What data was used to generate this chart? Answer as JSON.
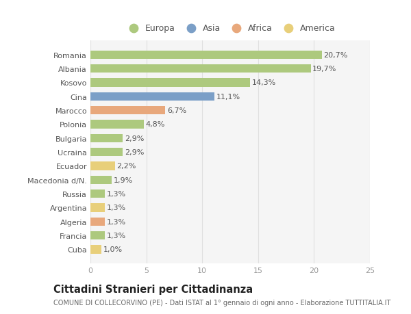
{
  "categories": [
    "Romania",
    "Albania",
    "Kosovo",
    "Cina",
    "Marocco",
    "Polonia",
    "Bulgaria",
    "Ucraina",
    "Ecuador",
    "Macedonia d/N.",
    "Russia",
    "Argentina",
    "Algeria",
    "Francia",
    "Cuba"
  ],
  "values": [
    20.7,
    19.7,
    14.3,
    11.1,
    6.7,
    4.8,
    2.9,
    2.9,
    2.2,
    1.9,
    1.3,
    1.3,
    1.3,
    1.3,
    1.0
  ],
  "labels": [
    "20,7%",
    "19,7%",
    "14,3%",
    "11,1%",
    "6,7%",
    "4,8%",
    "2,9%",
    "2,9%",
    "2,2%",
    "1,9%",
    "1,3%",
    "1,3%",
    "1,3%",
    "1,3%",
    "1,0%"
  ],
  "colors": [
    "#adc97e",
    "#adc97e",
    "#adc97e",
    "#7b9fc7",
    "#e8a87c",
    "#adc97e",
    "#adc97e",
    "#adc97e",
    "#e8cf7a",
    "#adc97e",
    "#adc97e",
    "#e8cf7a",
    "#e8a87c",
    "#adc97e",
    "#e8cf7a"
  ],
  "legend": [
    {
      "label": "Europa",
      "color": "#adc97e"
    },
    {
      "label": "Asia",
      "color": "#7b9fc7"
    },
    {
      "label": "Africa",
      "color": "#e8a87c"
    },
    {
      "label": "America",
      "color": "#e8cf7a"
    }
  ],
  "title": "Cittadini Stranieri per Cittadinanza",
  "subtitle": "COMUNE DI COLLECORVINO (PE) - Dati ISTAT al 1° gennaio di ogni anno - Elaborazione TUTTITALIA.IT",
  "xlim": [
    0,
    25
  ],
  "xticks": [
    0,
    5,
    10,
    15,
    20,
    25
  ],
  "bg_color": "#ffffff",
  "plot_bg_color": "#f5f5f5",
  "grid_color": "#e0e0e0",
  "bar_height": 0.6,
  "label_fontsize": 8,
  "tick_fontsize": 8,
  "ytick_fontsize": 8,
  "title_fontsize": 10.5,
  "subtitle_fontsize": 7
}
